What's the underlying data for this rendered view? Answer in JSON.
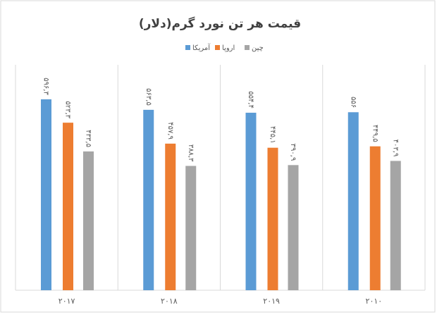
{
  "chart_data": {
    "type": "bar",
    "title": "قیمت هر تن نورد گرم(دلار)",
    "categories": [
      "۲۰۱۷",
      "۲۰۱۸",
      "۲۰۱۹",
      "۲۰۱۰"
    ],
    "series": [
      {
        "name": "آمریکا",
        "color": "#5b9bd5",
        "values": [
          596.3,
          563.5,
          554.4,
          556
        ],
        "value_labels": [
          "۵۹۶,۳",
          "۵۶۳,۵",
          "۵۵۴,۴",
          "۵۵۶"
        ]
      },
      {
        "name": "اروپا",
        "color": "#ed7d31",
        "values": [
          523.3,
          457.9,
          445.1,
          449.5
        ],
        "value_labels": [
          "۵۲۳,۳",
          "۴۵۷,۹",
          "۴۴۵,۱",
          "۴۴۹,۵"
        ]
      },
      {
        "name": "چین",
        "color": "#a5a5a5",
        "values": [
          433.5,
          388.3,
          390.9,
          403.9
        ],
        "value_labels": [
          "۴۳۳,۵",
          "۳۸۸,۳",
          "۳۹۰,۹",
          "۴۰۳,۹"
        ]
      }
    ],
    "legend": "top"
  }
}
